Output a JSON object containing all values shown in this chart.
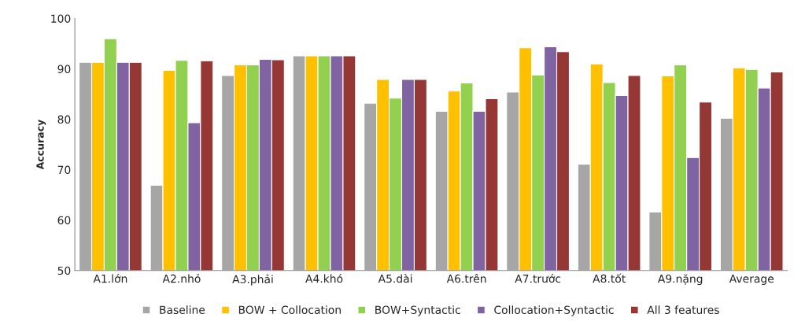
{
  "chart_data": {
    "type": "bar",
    "ylabel": "Accuracy",
    "categories": [
      "A1.lớn",
      "A2.nhỏ",
      "A3.phải",
      "A4.khó",
      "A5.dài",
      "A6.trên",
      "A7.trước",
      "A8.tốt",
      "A9.nặng",
      "Average"
    ],
    "series": [
      {
        "name": "Baseline",
        "color": "#a6a6a6",
        "values": [
          91.3,
          66.9,
          88.7,
          92.6,
          83.2,
          81.6,
          85.4,
          71.1,
          61.6,
          80.2
        ]
      },
      {
        "name": "BOW + Collocation",
        "color": "#ffc000",
        "values": [
          91.3,
          89.7,
          90.8,
          92.6,
          87.9,
          85.6,
          94.2,
          91.0,
          88.6,
          90.2
        ]
      },
      {
        "name": "BOW+Syntactic",
        "color": "#92d050",
        "values": [
          96.0,
          91.7,
          90.8,
          92.6,
          84.2,
          87.2,
          88.8,
          87.3,
          90.8,
          89.9
        ]
      },
      {
        "name": "Collocation+Syntactic",
        "color": "#8064a2",
        "values": [
          91.3,
          79.3,
          91.9,
          92.6,
          87.9,
          81.6,
          94.4,
          84.7,
          72.4,
          86.2
        ]
      },
      {
        "name": "All 3 features",
        "color": "#953735",
        "values": [
          91.3,
          91.6,
          91.8,
          92.6,
          87.9,
          84.1,
          93.4,
          88.7,
          83.4,
          89.4
        ]
      }
    ],
    "ylim": [
      50,
      100
    ],
    "yticks": [
      50,
      60,
      70,
      80,
      90,
      100
    ],
    "grid": false,
    "legend": "bottom"
  }
}
